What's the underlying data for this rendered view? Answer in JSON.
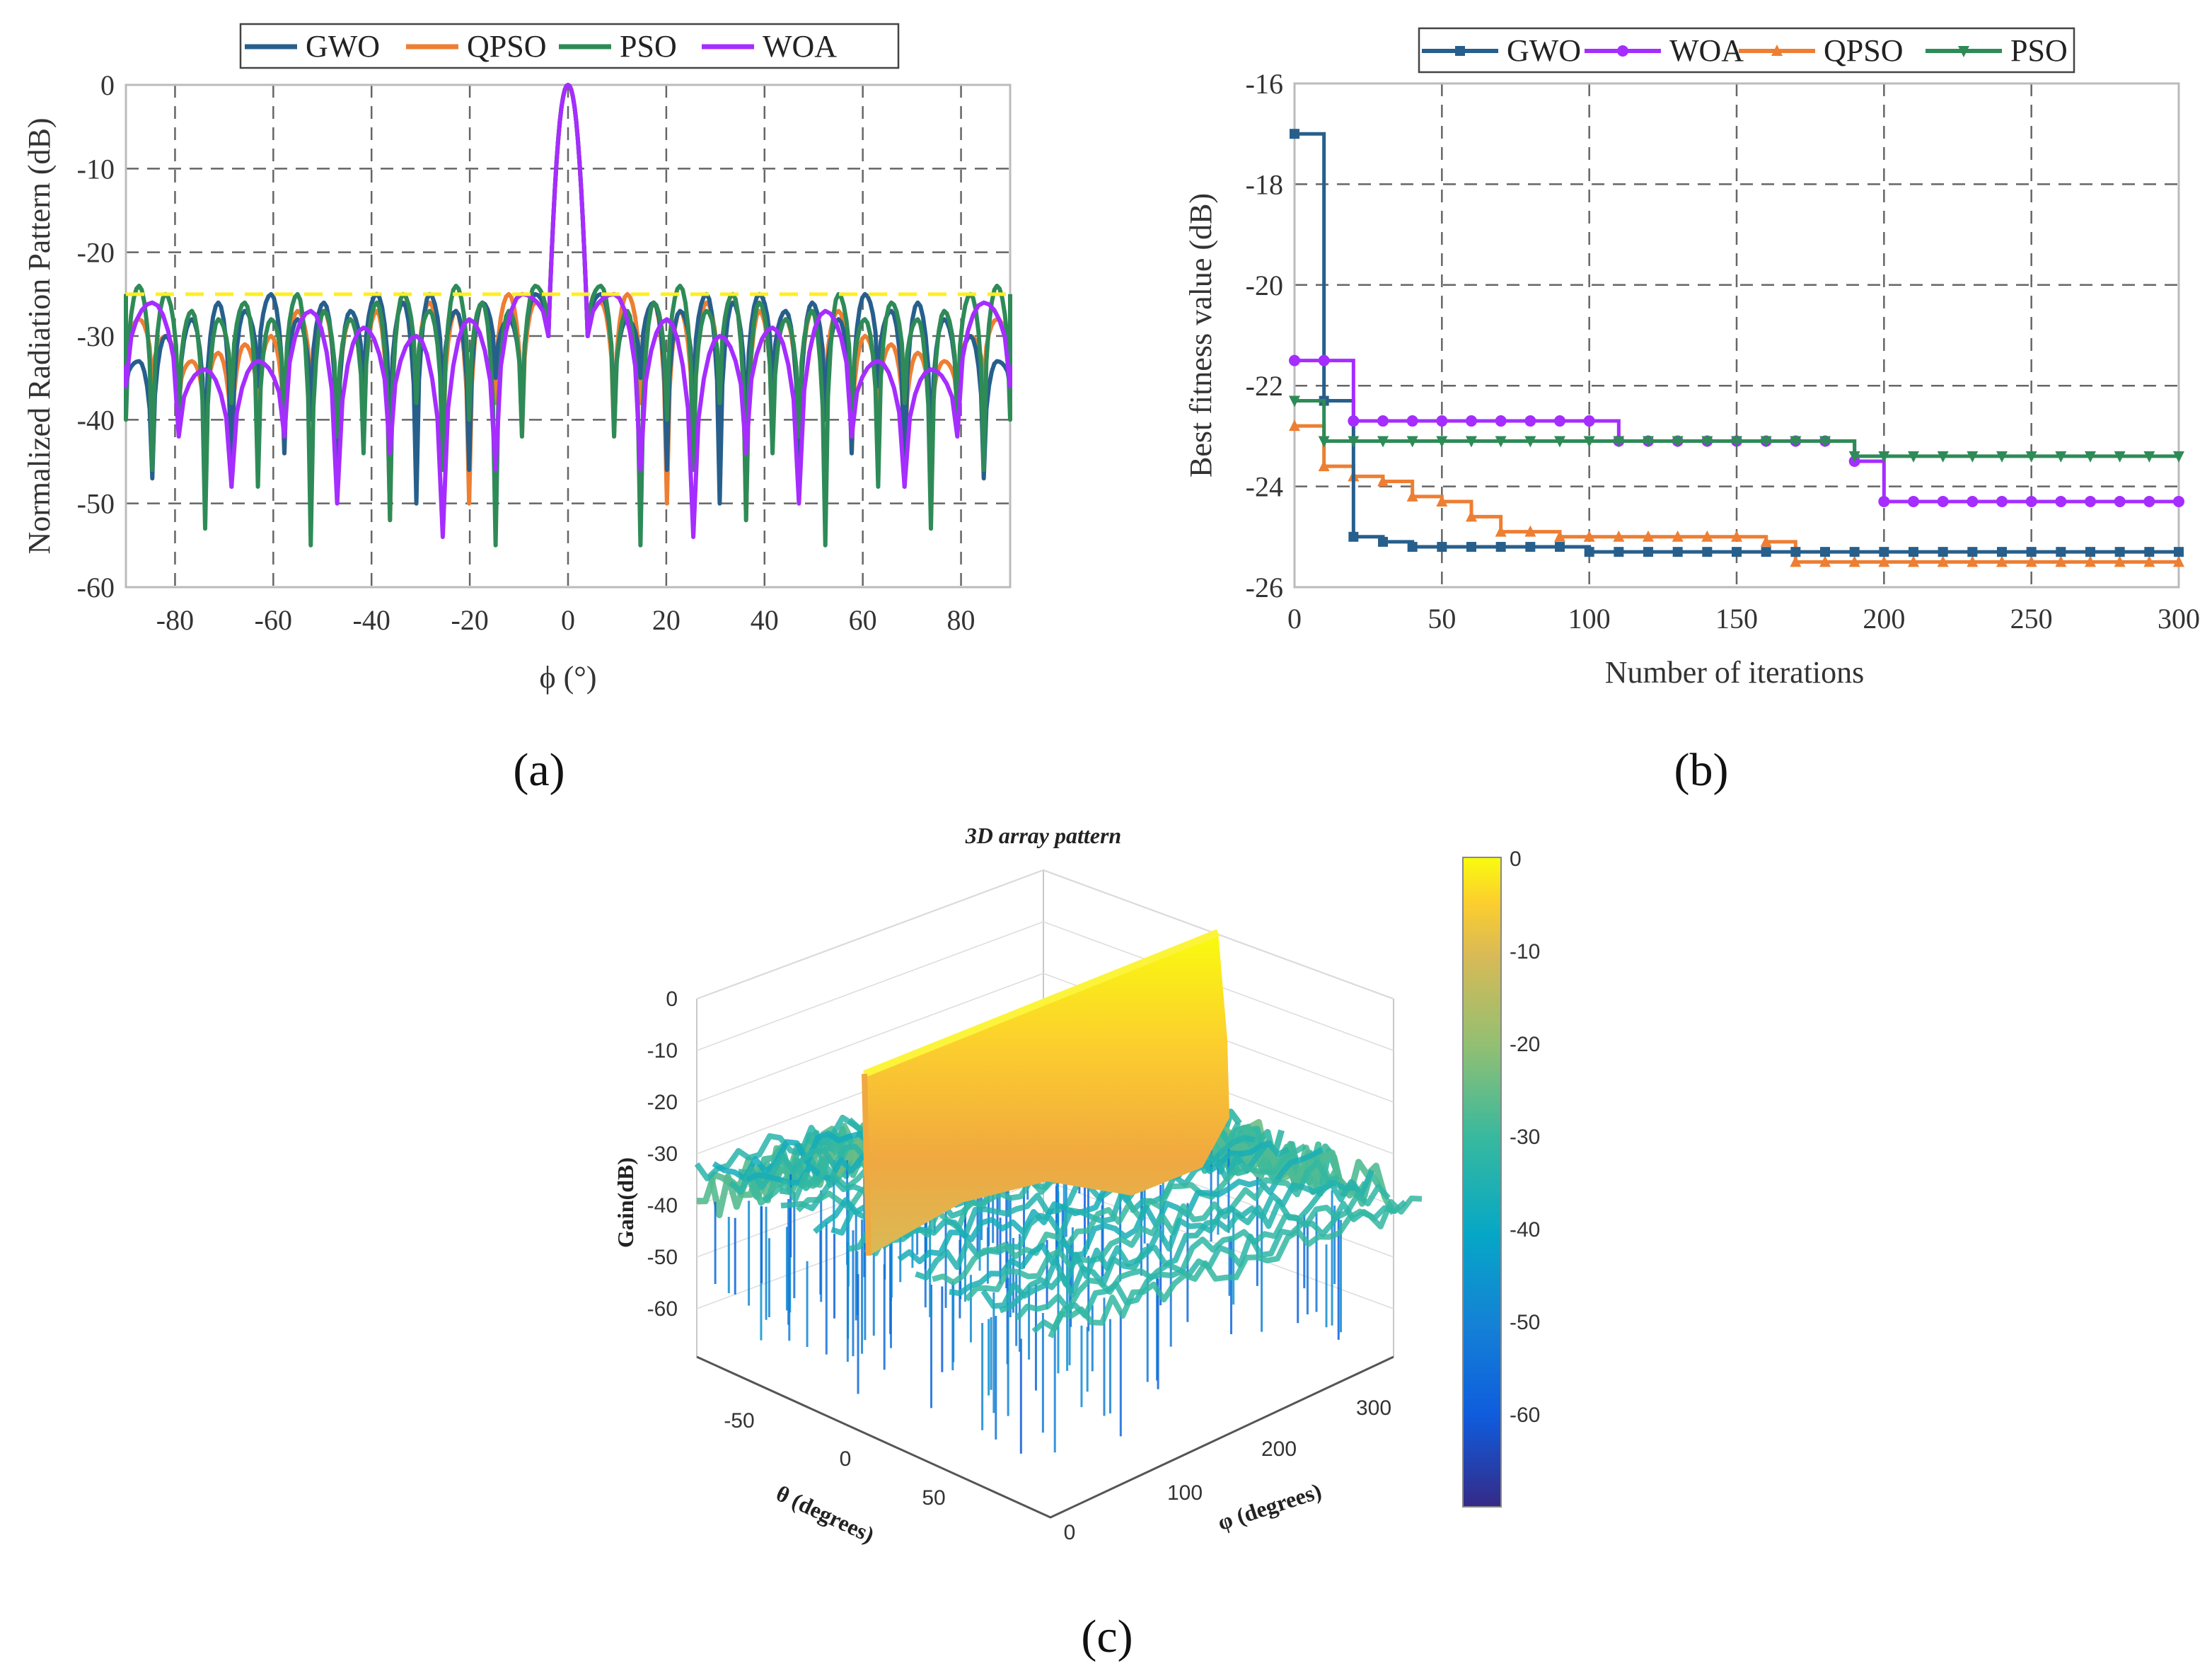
{
  "colors": {
    "GWO": "#275f8c",
    "QPSO": "#ee7e32",
    "PSO": "#2e8b57",
    "WOA": "#a52dff",
    "limit": "#ffee22",
    "grid": "#666666",
    "frame": "#bbbbbb"
  },
  "chart_data": [
    {
      "id": "a",
      "type": "line",
      "caption": "(a)",
      "xlabel": "ϕ (°)",
      "ylabel": "Normalized Radiation Pattern (dB)",
      "xlim": [
        -90,
        90
      ],
      "ylim": [
        -60,
        0
      ],
      "xticks": [
        "-80",
        "-60",
        "-40",
        "-20",
        "0",
        "20",
        "40",
        "60",
        "80"
      ],
      "xtick_values": [
        -80,
        -60,
        -40,
        -20,
        0,
        20,
        40,
        60,
        80
      ],
      "yticks": [
        "0",
        "-10",
        "-20",
        "-30",
        "-40",
        "-50",
        "-60"
      ],
      "ytick_values": [
        0,
        -10,
        -20,
        -30,
        -40,
        -50,
        -60
      ],
      "legend": [
        "GWO",
        "QPSO",
        "PSO",
        "WOA"
      ],
      "sll_limit_db": -25,
      "mainlobe_halfwidth_deg": 4,
      "series": [
        {
          "name": "GWO",
          "peaks": [
            -25,
            -28,
            -26,
            -27,
            -25,
            -26,
            -25,
            -27,
            -26,
            -28,
            -25,
            -27,
            -26,
            -28,
            -30,
            -33
          ],
          "nulls": [
            -40,
            -35,
            -46,
            -38,
            -50,
            -42,
            -37,
            -48,
            -40,
            -44,
            -36,
            -48,
            -45,
            -40,
            -47,
            -36
          ]
        },
        {
          "name": "QPSO",
          "peaks": [
            -26,
            -25,
            -26,
            -27,
            -26,
            -25,
            -27,
            -28,
            -27,
            -27,
            -30,
            -31,
            -32,
            -33,
            -30,
            -28
          ],
          "nulls": [
            -42,
            -38,
            -50,
            -45,
            -40,
            -52,
            -42,
            -46,
            -38,
            -44,
            -40,
            -45,
            -42,
            -38,
            -36,
            -34
          ]
        },
        {
          "name": "PSO",
          "peaks": [
            -24,
            -27,
            -26,
            -24,
            -27,
            -25,
            -26,
            -28,
            -27,
            -25,
            -28,
            -26,
            -28,
            -27,
            -25,
            -24
          ],
          "nulls": [
            -42,
            -55,
            -40,
            -46,
            -38,
            -52,
            -44,
            -42,
            -55,
            -40,
            -48,
            -38,
            -53,
            -40,
            -46,
            -40
          ],
          "ends": -25
        },
        {
          "name": "WOA",
          "peaks": [
            -25,
            -28,
            -30,
            -29,
            -27,
            -33,
            -34,
            -26
          ],
          "nulls": [
            -46,
            -54,
            -44,
            -50,
            -42,
            -48,
            -42,
            -36
          ],
          "ends": -33.5
        }
      ]
    },
    {
      "id": "b",
      "type": "line",
      "caption": "(b)",
      "xlabel": "Number of iterations",
      "ylabel": "Best fitness value (dB)",
      "xlim": [
        0,
        300
      ],
      "ylim": [
        -26,
        -16
      ],
      "xticks": [
        "0",
        "50",
        "100",
        "150",
        "200",
        "250",
        "300"
      ],
      "xtick_values": [
        0,
        50,
        100,
        150,
        200,
        250,
        300
      ],
      "yticks": [
        "-16",
        "-18",
        "-20",
        "-22",
        "-24",
        "-26"
      ],
      "ytick_values": [
        -16,
        -18,
        -20,
        -22,
        -24,
        -26
      ],
      "legend": [
        "GWO",
        "WOA",
        "QPSO",
        "PSO"
      ],
      "series": [
        {
          "name": "GWO",
          "marker": "square",
          "steps": [
            [
              0,
              -17
            ],
            [
              10,
              -22.3
            ],
            [
              20,
              -25
            ],
            [
              30,
              -25.1
            ],
            [
              40,
              -25.2
            ],
            [
              100,
              -25.3
            ],
            [
              300,
              -25.3
            ]
          ]
        },
        {
          "name": "WOA",
          "marker": "circle",
          "steps": [
            [
              0,
              -21.5
            ],
            [
              20,
              -22.7
            ],
            [
              110,
              -23.1
            ],
            [
              190,
              -23.5
            ],
            [
              200,
              -24.3
            ],
            [
              300,
              -24.3
            ]
          ]
        },
        {
          "name": "QPSO",
          "marker": "triangle-up",
          "steps": [
            [
              0,
              -22.8
            ],
            [
              10,
              -23.6
            ],
            [
              20,
              -23.8
            ],
            [
              30,
              -23.9
            ],
            [
              40,
              -24.2
            ],
            [
              50,
              -24.3
            ],
            [
              60,
              -24.6
            ],
            [
              70,
              -24.9
            ],
            [
              90,
              -25
            ],
            [
              160,
              -25.1
            ],
            [
              170,
              -25.5
            ],
            [
              300,
              -25.5
            ]
          ]
        },
        {
          "name": "PSO",
          "marker": "triangle-down",
          "steps": [
            [
              0,
              -22.3
            ],
            [
              10,
              -23.1
            ],
            [
              40,
              -23.1
            ],
            [
              190,
              -23.4
            ],
            [
              300,
              -23.4
            ]
          ]
        }
      ]
    },
    {
      "id": "c",
      "type": "surface",
      "caption": "(c)",
      "title": "3D array pattern",
      "zlabel": "Gain(dB)",
      "xlabel": "θ (degrees)",
      "ylabel": "φ (degrees)",
      "zticks": [
        "0",
        "-10",
        "-20",
        "-30",
        "-40",
        "-50",
        "-60"
      ],
      "theta_ticks": [
        "-50",
        "0",
        "50"
      ],
      "phi_ticks": [
        "0",
        "100",
        "200",
        "300"
      ],
      "colorbar_ticks": [
        "0",
        "-10",
        "-20",
        "-30",
        "-40",
        "-50",
        "-60"
      ],
      "zlim": [
        -70,
        0
      ],
      "mainlobe_theta_deg": 0,
      "mainlobe_gain_db": 0
    }
  ]
}
